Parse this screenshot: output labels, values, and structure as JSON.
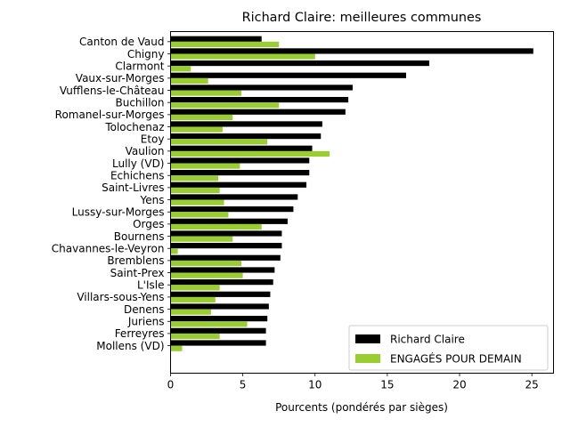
{
  "chart_data": {
    "type": "bar",
    "orientation": "horizontal",
    "title": "Richard Claire: meilleures communes",
    "xlabel": "Pourcents (pondérés par sièges)",
    "ylabel": "",
    "xlim": [
      0,
      26.5
    ],
    "xticks": [
      0,
      5,
      10,
      15,
      20,
      25
    ],
    "grid": false,
    "legend_position": "lower-right",
    "categories": [
      "Canton de Vaud",
      "Chigny",
      "Clarmont",
      "Vaux-sur-Morges",
      "Vufflens-le-Château",
      "Buchillon",
      "Romanel-sur-Morges",
      "Tolochenaz",
      "Etoy",
      "Vaulion",
      "Lully (VD)",
      "Echichens",
      "Saint-Livres",
      "Yens",
      "Lussy-sur-Morges",
      "Orges",
      "Bournens",
      "Chavannes-le-Veyron",
      "Bremblens",
      "Saint-Prex",
      "L'Isle",
      "Villars-sous-Yens",
      "Denens",
      "Juriens",
      "Ferreyres",
      "Mollens (VD)"
    ],
    "series": [
      {
        "name": "Richard Claire",
        "color": "#000000",
        "values": [
          6.3,
          25.1,
          17.9,
          16.3,
          12.6,
          12.3,
          12.1,
          10.5,
          10.4,
          9.8,
          9.6,
          9.6,
          9.4,
          8.8,
          8.5,
          8.1,
          7.7,
          7.7,
          7.6,
          7.2,
          7.1,
          6.9,
          6.8,
          6.7,
          6.6,
          6.6
        ]
      },
      {
        "name": "ENGAGÉS POUR DEMAIN",
        "color": "#9acd32",
        "values": [
          7.5,
          10.0,
          1.4,
          2.6,
          4.9,
          7.5,
          4.3,
          3.6,
          6.7,
          11.0,
          4.8,
          3.3,
          3.4,
          3.7,
          4.0,
          6.3,
          4.3,
          0.5,
          4.9,
          5.0,
          3.4,
          3.1,
          2.8,
          5.3,
          3.4,
          0.8
        ]
      }
    ]
  }
}
